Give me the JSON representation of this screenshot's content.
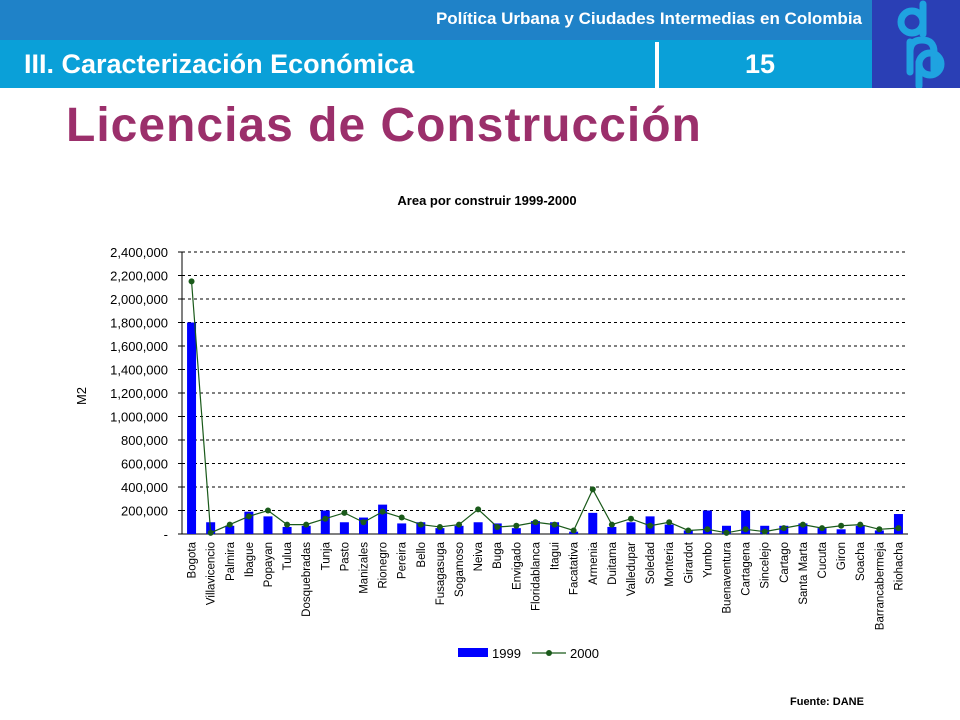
{
  "header": {
    "subtitle": "Política Urbana y Ciudades Intermedias en Colombia",
    "section": "III. Caracterización Económica",
    "page_number": "15"
  },
  "slide_title": "Licencias de Construcción",
  "source_note": "Fuente: DANE",
  "colors": {
    "topbar": "#1f82c8",
    "section_bar": "#0aa0d8",
    "logo_bg": "#2a3fb5",
    "title": "#9b2f6b",
    "bar_1999": "#0000ff",
    "line_2000": "#1a5a1a"
  },
  "chart_data": {
    "type": "bar",
    "title": "Area por construir 1999-2000",
    "ylabel": "M2",
    "xlabel": "",
    "ylim": [
      0,
      2400000
    ],
    "yticks": [
      "-",
      "200,000",
      "400,000",
      "600,000",
      "800,000",
      "1,000,000",
      "1,200,000",
      "1,400,000",
      "1,600,000",
      "1,800,000",
      "2,000,000",
      "2,200,000",
      "2,400,000"
    ],
    "grid": true,
    "legend_position": "bottom",
    "categories": [
      "Bogota",
      "Villavicencio",
      "Palmira",
      "Ibague",
      "Popayan",
      "Tulua",
      "Dosquebradas",
      "Tunja",
      "Pasto",
      "Manizales",
      "Rionegro",
      "Pereira",
      "Bello",
      "Fusagasuga",
      "Sogamoso",
      "Neiva",
      "Buga",
      "Envigado",
      "Floridablanca",
      "Itagui",
      "Facatativa",
      "Armenia",
      "Duitama",
      "Valledupar",
      "Soledad",
      "Monteria",
      "Girardot",
      "Yumbo",
      "Buenaventura",
      "Cartagena",
      "Sincelejo",
      "Cartago",
      "Santa Marta",
      "Cucuta",
      "Giron",
      "Soacha",
      "Barrancabermeja",
      "Riohacha"
    ],
    "series": [
      {
        "name": "1999",
        "type": "bar",
        "values": [
          1800000,
          100000,
          70000,
          190000,
          150000,
          60000,
          70000,
          200000,
          100000,
          140000,
          250000,
          90000,
          100000,
          50000,
          70000,
          100000,
          90000,
          50000,
          110000,
          100000,
          20000,
          180000,
          60000,
          100000,
          150000,
          80000,
          30000,
          200000,
          70000,
          200000,
          70000,
          70000,
          90000,
          50000,
          40000,
          70000,
          30000,
          170000
        ]
      },
      {
        "name": "2000",
        "type": "line",
        "values": [
          2150000,
          10000,
          80000,
          150000,
          200000,
          80000,
          80000,
          130000,
          180000,
          100000,
          190000,
          140000,
          80000,
          60000,
          80000,
          210000,
          60000,
          70000,
          100000,
          80000,
          30000,
          380000,
          80000,
          130000,
          70000,
          100000,
          30000,
          40000,
          10000,
          40000,
          20000,
          50000,
          80000,
          50000,
          70000,
          80000,
          40000,
          50000
        ]
      }
    ]
  }
}
